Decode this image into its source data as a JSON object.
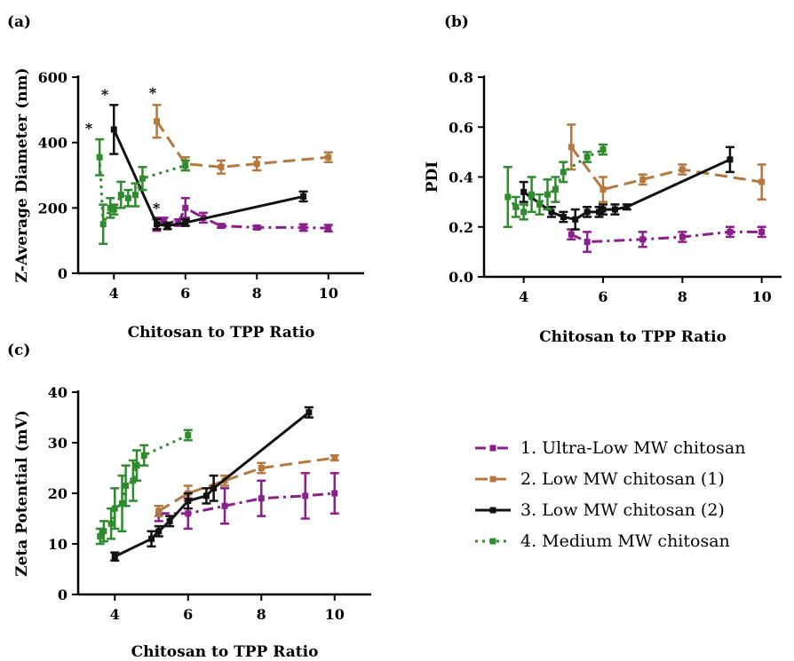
{
  "colors": {
    "s1": "#8B1F8B",
    "s2": "#B5783F",
    "s3": "#111111",
    "s4": "#2E8B2E"
  },
  "legend": [
    "1. Ultra-Low MW chitosan",
    "2. Low MW chitosan (1)",
    "3. Low MW chitosan (2)",
    "4. Medium MW chitosan"
  ],
  "chart_data": [
    {
      "type": "line",
      "panel_label": "(a)",
      "xlabel": "Chitosan to TPP Ratio",
      "ylabel": "Z-Average Diameter (nm)",
      "xlim": [
        3,
        11
      ],
      "ylim": [
        0,
        600
      ],
      "xticks": [
        4,
        6,
        8,
        10
      ],
      "yticks": [
        0,
        200,
        400,
        600
      ],
      "series": [
        {
          "name": "1. Ultra-Low MW chitosan",
          "color": "s1",
          "style": "dashdot",
          "x": [
            5.2,
            5.4,
            5.8,
            6,
            6.5,
            7,
            8,
            9.3,
            10
          ],
          "y": [
            150,
            160,
            155,
            200,
            170,
            145,
            140,
            140,
            138
          ],
          "err": [
            20,
            10,
            10,
            30,
            15,
            5,
            5,
            10,
            10
          ]
        },
        {
          "name": "2. Low MW chitosan (1)",
          "color": "s2",
          "style": "dashed",
          "x": [
            5.2,
            6,
            7,
            8,
            10
          ],
          "y": [
            465,
            335,
            325,
            335,
            355
          ],
          "err": [
            50,
            20,
            20,
            20,
            15
          ]
        },
        {
          "name": "3. Low MW chitosan (2)",
          "color": "s3",
          "style": "solid",
          "x": [
            4,
            5.2,
            5.5,
            6,
            9.3
          ],
          "y": [
            440,
            150,
            145,
            155,
            235
          ],
          "err": [
            75,
            15,
            10,
            10,
            15
          ]
        },
        {
          "name": "4. Medium MW chitosan",
          "color": "s4",
          "style": "dotted",
          "x": [
            3.6,
            3.7,
            3.9,
            4,
            4.2,
            4.4,
            4.6,
            4.8,
            6
          ],
          "y": [
            355,
            150,
            200,
            195,
            240,
            230,
            240,
            290,
            330
          ],
          "err": [
            55,
            60,
            30,
            15,
            40,
            25,
            35,
            35,
            15
          ]
        }
      ],
      "annotations": [
        "*",
        "*",
        "*",
        "*"
      ]
    },
    {
      "type": "line",
      "panel_label": "(b)",
      "xlabel": "Chitosan to TPP Ratio",
      "ylabel": "PDI",
      "xlim": [
        3,
        10.5
      ],
      "ylim": [
        0,
        0.8
      ],
      "xticks": [
        4,
        6,
        8,
        10
      ],
      "yticks": [
        0.0,
        0.2,
        0.4,
        0.6,
        0.8
      ],
      "series": [
        {
          "name": "1. Ultra-Low MW chitosan",
          "color": "s1",
          "style": "dashdot",
          "x": [
            5.2,
            5.6,
            7,
            8,
            9.2,
            10
          ],
          "y": [
            0.17,
            0.14,
            0.15,
            0.16,
            0.18,
            0.18
          ],
          "err": [
            0.02,
            0.04,
            0.03,
            0.02,
            0.02,
            0.02
          ]
        },
        {
          "name": "2. Low MW chitosan (1)",
          "color": "s2",
          "style": "dashed",
          "x": [
            5.2,
            6,
            7,
            8,
            10
          ],
          "y": [
            0.52,
            0.35,
            0.39,
            0.43,
            0.38
          ],
          "err": [
            0.09,
            0.05,
            0.02,
            0.02,
            0.07
          ]
        },
        {
          "name": "3. Low MW chitosan (2)",
          "color": "s3",
          "style": "solid",
          "x": [
            4,
            4.7,
            5,
            5.3,
            5.6,
            5.9,
            6,
            6.3,
            6.6,
            9.2
          ],
          "y": [
            0.34,
            0.26,
            0.24,
            0.23,
            0.26,
            0.26,
            0.27,
            0.27,
            0.28,
            0.47
          ],
          "err": [
            0.04,
            0.02,
            0.02,
            0.04,
            0.02,
            0.02,
            0.02,
            0.02,
            0.01,
            0.05
          ]
        },
        {
          "name": "4. Medium MW chitosan",
          "color": "s4",
          "style": "dotted",
          "x": [
            3.6,
            3.8,
            4,
            4.2,
            4.4,
            4.6,
            4.8,
            5,
            5.6,
            6
          ],
          "y": [
            0.32,
            0.28,
            0.26,
            0.33,
            0.29,
            0.33,
            0.35,
            0.42,
            0.48,
            0.51
          ],
          "err": [
            0.12,
            0.04,
            0.03,
            0.07,
            0.04,
            0.06,
            0.05,
            0.04,
            0.02,
            0.02
          ]
        }
      ]
    },
    {
      "type": "line",
      "panel_label": "(c)",
      "xlabel": "Chitosan to TPP Ratio",
      "ylabel": "Zeta Potential (mV)",
      "xlim": [
        3,
        11
      ],
      "ylim": [
        0,
        40
      ],
      "xticks": [
        4,
        6,
        8,
        10
      ],
      "yticks": [
        0,
        10,
        20,
        30,
        40
      ],
      "series": [
        {
          "name": "1. Ultra-Low MW chitosan",
          "color": "s1",
          "style": "dashdot",
          "x": [
            5.2,
            6,
            7,
            8,
            9.2,
            10
          ],
          "y": [
            16,
            16,
            17.5,
            19,
            19.5,
            20
          ],
          "err": [
            1.5,
            3,
            3.5,
            3.5,
            4.5,
            4
          ]
        },
        {
          "name": "2. Low MW chitosan (1)",
          "color": "s2",
          "style": "dashed",
          "x": [
            5.2,
            6,
            7,
            8,
            10
          ],
          "y": [
            16.5,
            20,
            22.5,
            25,
            27
          ],
          "err": [
            1,
            1.5,
            1,
            1,
            0.5
          ]
        },
        {
          "name": "3. Low MW chitosan (2)",
          "color": "s3",
          "style": "solid",
          "x": [
            4,
            5,
            5.2,
            5.5,
            6,
            6.5,
            6.7,
            9.3
          ],
          "y": [
            7.5,
            11,
            12.5,
            14.5,
            18.5,
            19.5,
            21,
            36
          ],
          "err": [
            0.8,
            1.5,
            1,
            1,
            1.5,
            1.5,
            2.5,
            1
          ]
        },
        {
          "name": "4. Medium MW chitosan",
          "color": "s4",
          "style": "dotted",
          "x": [
            3.6,
            3.7,
            3.9,
            4,
            4.2,
            4.3,
            4.5,
            4.6,
            4.8,
            6
          ],
          "y": [
            11.5,
            12.5,
            14,
            17,
            18,
            21.5,
            22.5,
            25.5,
            27.5,
            31.5
          ],
          "err": [
            1.5,
            2,
            3,
            4,
            5.5,
            4,
            4,
            3,
            2,
            1
          ]
        }
      ]
    }
  ]
}
